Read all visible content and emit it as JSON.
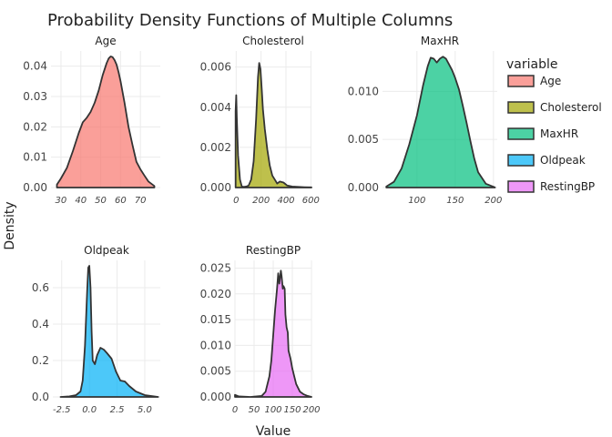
{
  "chart_data": {
    "type": "area",
    "title": "Probability Density Functions of Multiple Columns",
    "xlabel": "Value",
    "ylabel": "Density",
    "legend": {
      "title": "variable",
      "position": "right",
      "entries": [
        "Age",
        "Cholesterol",
        "MaxHR",
        "Oldpeak",
        "RestingBP"
      ]
    },
    "colors": {
      "Age": "#F8766D",
      "Cholesterol": "#A3A500",
      "MaxHR": "#00BF7D",
      "Oldpeak": "#00B0F6",
      "RestingBP": "#E76BF3"
    },
    "grid": true,
    "facets": [
      {
        "name": "Age",
        "xlim": [
          25,
          80
        ],
        "ylim": [
          0,
          0.045
        ],
        "xticks": [
          30,
          40,
          50,
          60,
          70
        ],
        "yticks": [
          0,
          0.01,
          0.02,
          0.03,
          0.04
        ],
        "ytick_labels": [
          "0.00",
          "0.01",
          "0.02",
          "0.03",
          "0.04"
        ],
        "x": [
          28,
          30,
          33,
          36,
          39,
          41,
          43,
          45,
          47,
          49,
          51,
          53,
          54,
          55,
          56,
          57,
          58,
          59,
          60,
          62,
          64,
          66,
          68,
          70,
          72,
          74,
          77
        ],
        "y": [
          0.001,
          0.003,
          0.0065,
          0.012,
          0.018,
          0.0215,
          0.023,
          0.025,
          0.028,
          0.032,
          0.037,
          0.041,
          0.0425,
          0.0432,
          0.043,
          0.042,
          0.0405,
          0.038,
          0.035,
          0.028,
          0.02,
          0.014,
          0.0085,
          0.006,
          0.004,
          0.002,
          0.0005
        ]
      },
      {
        "name": "Cholesterol",
        "xlim": [
          -10,
          605
        ],
        "ylim": [
          0,
          0.0068
        ],
        "xticks": [
          0,
          200,
          400,
          600
        ],
        "yticks": [
          0,
          0.002,
          0.004,
          0.006
        ],
        "ytick_labels": [
          "0.000",
          "0.002",
          "0.004",
          "0.006"
        ],
        "x": [
          -5,
          0,
          5,
          15,
          30,
          45,
          60,
          80,
          100,
          120,
          140,
          160,
          175,
          185,
          195,
          205,
          215,
          230,
          250,
          270,
          290,
          310,
          330,
          350,
          380,
          410,
          450,
          500,
          550,
          605
        ],
        "y": [
          0.0038,
          0.0046,
          0.0035,
          0.0016,
          0.0004,
          5e-05,
          3e-05,
          5e-05,
          0.0001,
          0.0004,
          0.0013,
          0.0034,
          0.0055,
          0.0062,
          0.0059,
          0.0049,
          0.0039,
          0.0029,
          0.0019,
          0.0011,
          0.0006,
          0.0004,
          0.0002,
          0.0003,
          0.00025,
          0.0001,
          5e-05,
          3e-05,
          2e-05,
          1e-05
        ]
      },
      {
        "name": "MaxHR",
        "xlim": [
          55,
          205
        ],
        "ylim": [
          0,
          0.0142
        ],
        "xticks": [
          100,
          150,
          200
        ],
        "yticks": [
          0,
          0.005,
          0.01
        ],
        "ytick_labels": [
          "0.000",
          "0.005",
          "0.010"
        ],
        "x": [
          60,
          70,
          80,
          90,
          100,
          108,
          114,
          118,
          122,
          126,
          130,
          134,
          138,
          142,
          146,
          150,
          155,
          160,
          165,
          170,
          175,
          180,
          190,
          202
        ],
        "y": [
          0.0001,
          0.0006,
          0.002,
          0.0045,
          0.0075,
          0.0106,
          0.0126,
          0.0135,
          0.0134,
          0.013,
          0.0134,
          0.0136,
          0.0134,
          0.0128,
          0.0122,
          0.0114,
          0.0102,
          0.0085,
          0.0067,
          0.0048,
          0.003,
          0.0016,
          0.0004,
          2e-05
        ]
      },
      {
        "name": "Oldpeak",
        "xlim": [
          -3.3,
          6.4
        ],
        "ylim": [
          0,
          0.75
        ],
        "xticks": [
          -2.5,
          0,
          2.5,
          5
        ],
        "xtick_labels": [
          "-2.5",
          "0.0",
          "2.5",
          "5.0"
        ],
        "yticks": [
          0,
          0.2,
          0.4,
          0.6
        ],
        "ytick_labels": [
          "0.0",
          "0.2",
          "0.4",
          "0.6"
        ],
        "x": [
          -2.6,
          -1.8,
          -1.2,
          -0.8,
          -0.6,
          -0.4,
          -0.2,
          -0.1,
          0,
          0.1,
          0.2,
          0.3,
          0.5,
          0.7,
          1.0,
          1.3,
          1.6,
          2.0,
          2.4,
          2.8,
          3.2,
          3.6,
          4.2,
          5.0,
          6.2
        ],
        "y": [
          0.0,
          0.003,
          0.01,
          0.03,
          0.09,
          0.28,
          0.58,
          0.71,
          0.72,
          0.6,
          0.36,
          0.2,
          0.18,
          0.23,
          0.27,
          0.26,
          0.24,
          0.21,
          0.14,
          0.09,
          0.085,
          0.06,
          0.03,
          0.01,
          0.0
        ]
      },
      {
        "name": "RestingBP",
        "xlim": [
          0,
          200
        ],
        "ylim": [
          0,
          0.0265
        ],
        "xticks": [
          0,
          50,
          100,
          150,
          200
        ],
        "yticks": [
          0,
          0.005,
          0.01,
          0.015,
          0.02,
          0.025
        ],
        "ytick_labels": [
          "0.000",
          "0.005",
          "0.010",
          "0.015",
          "0.020",
          "0.025"
        ],
        "x": [
          0,
          10,
          40,
          70,
          80,
          90,
          95,
          100,
          105,
          110,
          113,
          116,
          120,
          122,
          125,
          127,
          130,
          132,
          135,
          138,
          140,
          145,
          150,
          155,
          160,
          170,
          180,
          190,
          200
        ],
        "y": [
          0.0004,
          0.0001,
          0.0,
          0.0002,
          0.001,
          0.004,
          0.007,
          0.012,
          0.017,
          0.021,
          0.024,
          0.022,
          0.0245,
          0.0235,
          0.021,
          0.0215,
          0.021,
          0.016,
          0.0135,
          0.0125,
          0.009,
          0.0075,
          0.0055,
          0.004,
          0.0025,
          0.001,
          0.0005,
          0.0002,
          0.0
        ]
      }
    ]
  }
}
